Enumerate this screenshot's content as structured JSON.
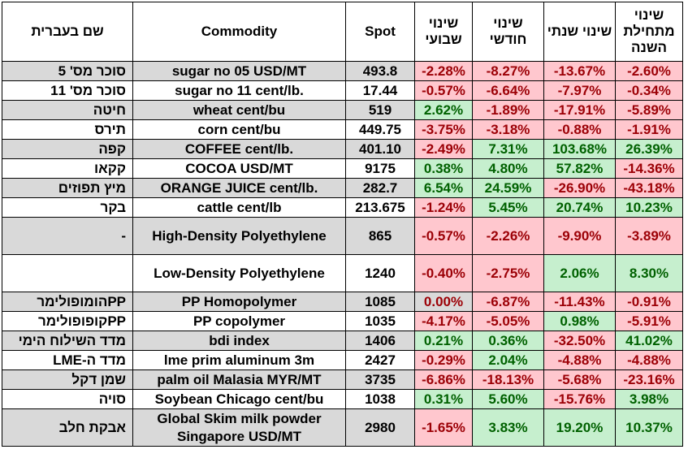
{
  "headers": {
    "hebrew_name": "שם בעברית",
    "commodity": "Commodity",
    "spot": "Spot",
    "weekly": "שינוי שבועי",
    "monthly": "שינוי חודשי",
    "yearly": "שינוי שנתי",
    "ytd": "שינוי מתחילת השנה"
  },
  "colors": {
    "negative_bg": "#ffc7ce",
    "negative_text": "#9c0006",
    "positive_bg": "#c6efce",
    "positive_text": "#006100",
    "grey_row": "#d9d9d9"
  },
  "rows": [
    {
      "he": "סוכר מס' 5",
      "com": "sugar no 05 USD/MT",
      "spot": "493.8",
      "w": "-2.28%",
      "m": "-8.27%",
      "y": "-13.67%",
      "ytd": "-2.60%",
      "grey": true
    },
    {
      "he": "סוכר מס' 11",
      "com": "sugar no 11 cent/lb.",
      "spot": "17.44",
      "w": "-0.57%",
      "m": "-6.64%",
      "y": "-7.97%",
      "ytd": "-0.34%",
      "grey": false
    },
    {
      "he": "חיטה",
      "com": "wheat cent/bu",
      "spot": "519",
      "w": "2.62%",
      "m": "-1.89%",
      "y": "-17.91%",
      "ytd": "-5.89%",
      "grey": true
    },
    {
      "he": "תירס",
      "com": "corn cent/bu",
      "spot": "449.75",
      "w": "-3.75%",
      "m": "-3.18%",
      "y": "-0.88%",
      "ytd": "-1.91%",
      "grey": false
    },
    {
      "he": "קפה",
      "com": "COFFEE cent/lb.",
      "spot": "401.10",
      "w": "-2.49%",
      "m": "7.31%",
      "y": "103.68%",
      "ytd": "26.39%",
      "grey": true
    },
    {
      "he": "קקאו",
      "com": "COCOA USD/MT",
      "spot": "9175",
      "w": "0.38%",
      "m": "4.80%",
      "y": "57.82%",
      "ytd": "-14.36%",
      "grey": false
    },
    {
      "he": "מיץ תפוזים",
      "com": "ORANGE JUICE cent/lb.",
      "spot": "282.7",
      "w": "6.54%",
      "m": "24.59%",
      "y": "-26.90%",
      "ytd": "-43.18%",
      "grey": true
    },
    {
      "he": "בקר",
      "com": "cattle cent/lb",
      "spot": "213.675",
      "w": "-1.24%",
      "m": "5.45%",
      "y": "20.74%",
      "ytd": "10.23%",
      "grey": false
    },
    {
      "he": "-",
      "com": "High-Density Polyethylene",
      "spot": "865",
      "w": "-0.57%",
      "m": "-2.26%",
      "y": "-9.90%",
      "ytd": "-3.89%",
      "grey": true,
      "tall": true
    },
    {
      "he": "",
      "com": "Low-Density Polyethylene",
      "spot": "1240",
      "w": "-0.40%",
      "m": "-2.75%",
      "y": "2.06%",
      "ytd": "8.30%",
      "grey": false,
      "tall": true
    },
    {
      "he": "PPהומופולימר",
      "com": "PP Homopolymer",
      "spot": "1085",
      "w": "0.00%",
      "m": "-6.87%",
      "y": "-11.43%",
      "ytd": "-0.91%",
      "grey": true
    },
    {
      "he": "PPקופופולימר",
      "com": "PP copolymer",
      "spot": "1035",
      "w": "-4.17%",
      "m": "-5.05%",
      "y": "0.98%",
      "ytd": "-5.91%",
      "grey": false
    },
    {
      "he": "מדד השילוח הימי",
      "com": "bdi index",
      "spot": "1406",
      "w": "0.21%",
      "m": "0.36%",
      "y": "-32.50%",
      "ytd": "41.02%",
      "grey": true
    },
    {
      "he": "מדד ה-LME",
      "com": "lme prim aluminum 3m",
      "spot": "2427",
      "w": "-0.29%",
      "m": "2.04%",
      "y": "-4.88%",
      "ytd": "-4.88%",
      "grey": false
    },
    {
      "he": "שמן דקל",
      "com": "palm oil Malasia MYR/MT",
      "spot": "3735",
      "w": "-6.86%",
      "m": "-18.13%",
      "y": "-5.68%",
      "ytd": "-23.16%",
      "grey": true
    },
    {
      "he": "סויה",
      "com": "Soybean Chicago cent/bu",
      "spot": "1038",
      "w": "0.31%",
      "m": "5.60%",
      "y": "-15.76%",
      "ytd": "3.98%",
      "grey": false
    },
    {
      "he": "אבקת חלב",
      "com": "Global Skim milk powder Singapore USD/MT",
      "spot": "2980",
      "w": "-1.65%",
      "m": "3.83%",
      "y": "19.20%",
      "ytd": "10.37%",
      "grey": true,
      "tall": true
    }
  ]
}
